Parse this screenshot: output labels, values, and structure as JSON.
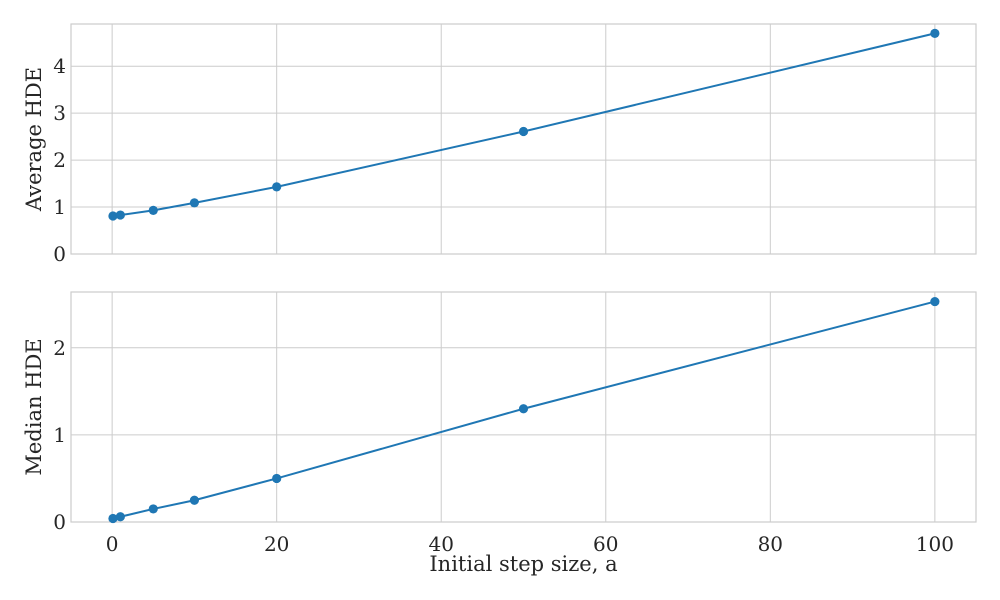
{
  "chart_data": [
    {
      "type": "line",
      "title": "",
      "xlabel": "",
      "ylabel": "Average HDE",
      "x": [
        0.1,
        1,
        5,
        10,
        20,
        50,
        100
      ],
      "series": [
        {
          "values": [
            0.81,
            0.83,
            0.93,
            1.09,
            1.43,
            2.61,
            4.7
          ]
        }
      ],
      "xlim": [
        -5,
        105
      ],
      "ylim": [
        0,
        4.9
      ],
      "xticks": [
        0,
        20,
        40,
        60,
        80,
        100
      ],
      "yticks": [
        0,
        1,
        2,
        3,
        4
      ],
      "show_xtick_labels": false,
      "grid": true,
      "color": "#1f77b4"
    },
    {
      "type": "line",
      "title": "",
      "xlabel": "Initial step size, a",
      "ylabel": "Median HDE",
      "x": [
        0.1,
        1,
        5,
        10,
        20,
        50,
        100
      ],
      "series": [
        {
          "values": [
            0.04,
            0.06,
            0.15,
            0.25,
            0.5,
            1.3,
            2.53
          ]
        }
      ],
      "xlim": [
        -5,
        105
      ],
      "ylim": [
        0,
        2.64
      ],
      "xticks": [
        0,
        20,
        40,
        60,
        80,
        100
      ],
      "yticks": [
        0,
        1,
        2
      ],
      "show_xtick_labels": true,
      "grid": true,
      "color": "#1f77b4"
    }
  ]
}
